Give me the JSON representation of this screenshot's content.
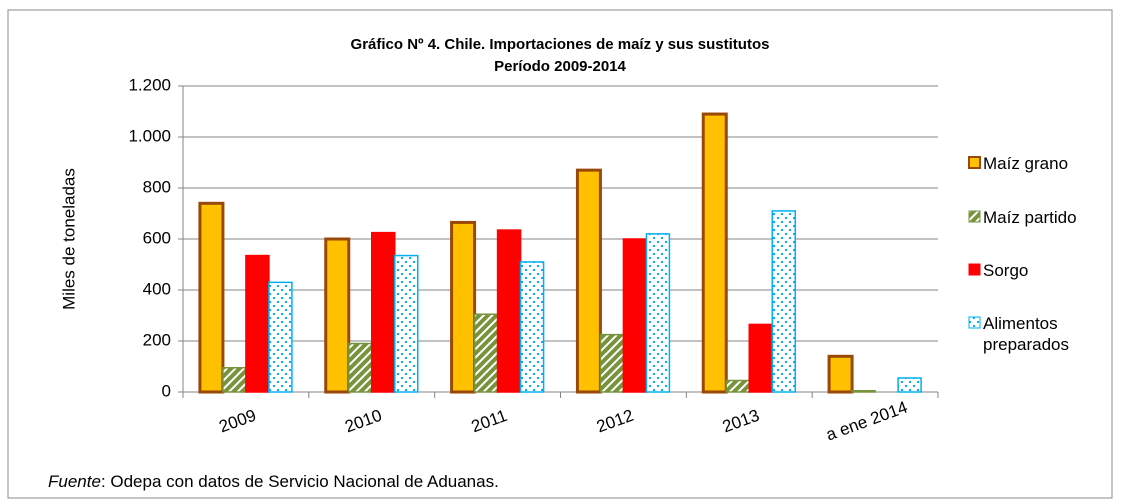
{
  "chart_data": {
    "type": "bar",
    "title": "Gráfico Nº 4. Chile. Importaciones de maíz y sus sustitutos",
    "subtitle": "Período 2009-2014",
    "y_label": "Miles de  toneladas",
    "categories": [
      "2009",
      "2010",
      "2011",
      "2012",
      "2013",
      "a ene 2014"
    ],
    "series": [
      {
        "name": "Maíz grano",
        "color": "#ffc000",
        "edgecolor": "#984807",
        "pattern": "solid",
        "values": [
          740,
          600,
          665,
          870,
          1090,
          140
        ]
      },
      {
        "name": "Maíz partido",
        "color": "#77933c",
        "edgecolor": "#77933c",
        "pattern": "hatch",
        "values": [
          95,
          190,
          305,
          225,
          45,
          5
        ]
      },
      {
        "name": "Sorgo",
        "color": "#ff0000",
        "edgecolor": "#ff0000",
        "pattern": "solid",
        "values": [
          535,
          625,
          635,
          600,
          265,
          null
        ]
      },
      {
        "name": "Alimentos preparados",
        "color": "#00b0f0",
        "edgecolor": "#00b0f0",
        "pattern": "dots",
        "values": [
          430,
          535,
          510,
          620,
          710,
          55
        ]
      }
    ],
    "ylim": [
      0,
      1200
    ],
    "yticks": [
      0,
      200,
      400,
      600,
      800,
      {
        "value": 1000,
        "label": "1.000"
      },
      {
        "value": 1200,
        "label": "1.200"
      }
    ],
    "grid": true,
    "legend": "right",
    "source_label": "Fuente",
    "source_text": ": Odepa con datos de Servicio Nacional de Aduanas."
  }
}
